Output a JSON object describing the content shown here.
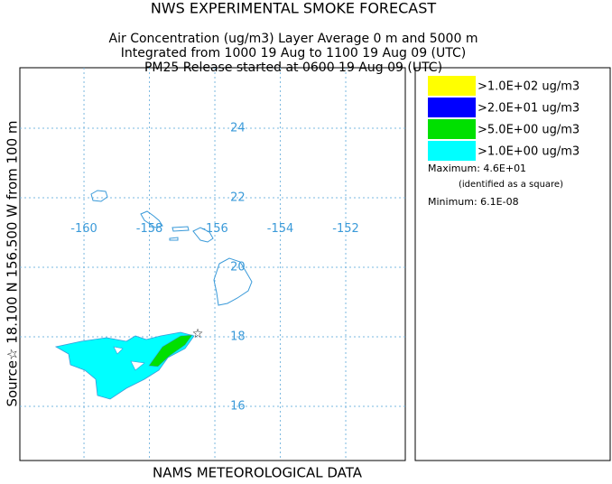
{
  "header": {
    "lines": [
      "NWS EXPERIMENTAL SMOKE FORECAST",
      "Air Concentration (ug/m3) Layer Average    0 m and  5000 m",
      "Integrated from 1000 19 Aug to 1100 19 Aug 09 (UTC)",
      "PM25 Release started at 0600 19 Aug 09 (UTC)"
    ]
  },
  "map": {
    "lonlim": [
      -161.96,
      -150.18
    ],
    "latlim": [
      14.44,
      25.74
    ],
    "lonticks": [
      -160,
      -158,
      -156,
      -154,
      -152
    ],
    "latticks": [
      16,
      18,
      20,
      22,
      24
    ],
    "tick_label_lat": 21.1,
    "tick_label_lon": -155.3,
    "source_label": "Source☆ 18.100 N 156.500 W  from  100 m",
    "footer": "NAMS METEOROLOGICAL DATA"
  },
  "legend": {
    "entries": [
      {
        "label": ">1.0E+02 ug/m3",
        "color": "#ffff00"
      },
      {
        "label": ">2.0E+01 ug/m3",
        "color": "#0000ff"
      },
      {
        "label": ">5.0E+00 ug/m3",
        "color": "#00e000"
      },
      {
        "label": ">1.0E+00 ug/m3",
        "color": "#00ffff"
      }
    ],
    "maximum": "Maximum: 4.6E+01",
    "maximum_note": "(identified as a square)",
    "minimum": "Minimum: 6.1E-08"
  }
}
